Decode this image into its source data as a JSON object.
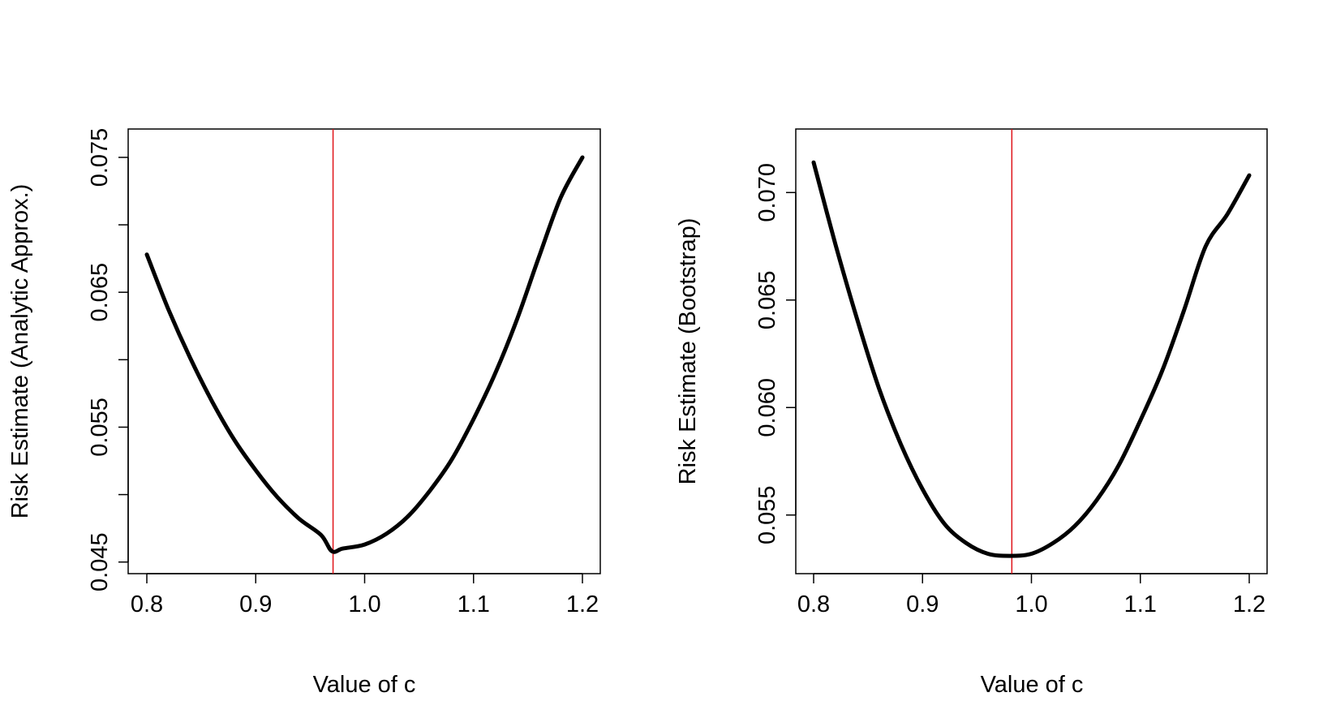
{
  "chart_data": [
    {
      "type": "line",
      "title": "",
      "xlabel": "Value of c",
      "ylabel": "Risk Estimate (Analytic Approx.)",
      "xlim": [
        0.8,
        1.2
      ],
      "ylim": [
        0.0445,
        0.0759
      ],
      "x_ticks": [
        0.8,
        0.9,
        1.0,
        1.1,
        1.2
      ],
      "x_tick_labels": [
        "0.8",
        "0.9",
        "1.0",
        "1.1",
        "1.2"
      ],
      "y_ticks": [
        0.045,
        0.05,
        0.055,
        0.06,
        0.065,
        0.07,
        0.075
      ],
      "y_tick_labels": [
        "0.045",
        "",
        "0.055",
        "",
        "0.065",
        "",
        "0.075"
      ],
      "grid": false,
      "series": [
        {
          "name": "risk",
          "color": "#000000",
          "x": [
            0.8,
            0.82,
            0.84,
            0.86,
            0.88,
            0.9,
            0.92,
            0.94,
            0.96,
            0.97,
            0.98,
            1.0,
            1.02,
            1.04,
            1.06,
            1.08,
            1.1,
            1.12,
            1.14,
            1.16,
            1.18,
            1.2
          ],
          "y": [
            0.0678,
            0.0637,
            0.0601,
            0.0569,
            0.0541,
            0.0518,
            0.0498,
            0.0482,
            0.047,
            0.0458,
            0.046,
            0.0463,
            0.0471,
            0.0484,
            0.0503,
            0.0526,
            0.0556,
            0.059,
            0.063,
            0.0676,
            0.072,
            0.075
          ]
        }
      ],
      "vline": {
        "x": 0.971,
        "color": "#e0141a"
      }
    },
    {
      "type": "line",
      "title": "",
      "xlabel": "Value of c",
      "ylabel": "Risk Estimate (Bootstrap)",
      "xlim": [
        0.8,
        1.2
      ],
      "ylim": [
        0.0525,
        0.0722
      ],
      "x_ticks": [
        0.8,
        0.9,
        1.0,
        1.1,
        1.2
      ],
      "x_tick_labels": [
        "0.8",
        "0.9",
        "1.0",
        "1.1",
        "1.2"
      ],
      "y_ticks": [
        0.055,
        0.06,
        0.065,
        0.07
      ],
      "y_tick_labels": [
        "0.055",
        "0.060",
        "0.065",
        "0.070"
      ],
      "grid": false,
      "series": [
        {
          "name": "risk",
          "color": "#000000",
          "x": [
            0.8,
            0.82,
            0.84,
            0.86,
            0.88,
            0.9,
            0.92,
            0.94,
            0.96,
            0.98,
            1.0,
            1.02,
            1.04,
            1.06,
            1.08,
            1.1,
            1.12,
            1.14,
            1.16,
            1.18,
            1.2
          ],
          "y": [
            0.0714,
            0.0676,
            0.0641,
            0.0609,
            0.0583,
            0.0562,
            0.0546,
            0.0537,
            0.0532,
            0.0531,
            0.0532,
            0.0537,
            0.0545,
            0.0557,
            0.0573,
            0.0594,
            0.0617,
            0.0645,
            0.0675,
            0.069,
            0.0708
          ]
        }
      ],
      "vline": {
        "x": 0.982,
        "color": "#e0141a"
      }
    }
  ]
}
